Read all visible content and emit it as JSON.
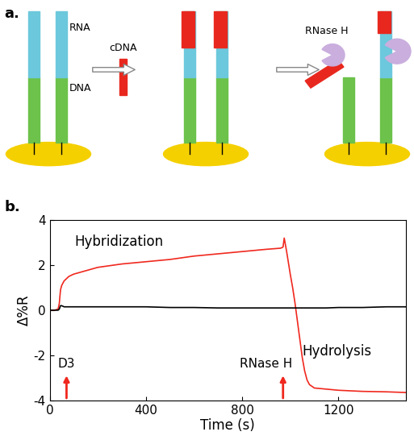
{
  "panel_a": {
    "label": "a.",
    "rna_label": "RNA",
    "dna_label": "DNA",
    "probe_label": "cDNA",
    "enzyme_label": "RNase H"
  },
  "chart_data": {
    "type": "line",
    "panel_label": "b.",
    "x_label": "Time (s)",
    "y_label": "Δ%R",
    "xlim": [
      0,
      1480
    ],
    "xticks": [
      0,
      400,
      800,
      1200
    ],
    "ylim": [
      -4,
      4
    ],
    "yticks": [
      -4,
      -2,
      0,
      2,
      4
    ],
    "x": [
      0,
      20,
      35,
      40,
      45,
      50,
      60,
      80,
      100,
      150,
      200,
      300,
      400,
      500,
      600,
      700,
      800,
      900,
      960,
      970,
      975,
      985,
      1000,
      1010,
      1020,
      1030,
      1040,
      1050,
      1060,
      1070,
      1080,
      1100,
      1150,
      1200,
      1300,
      1400,
      1480
    ],
    "series": [
      {
        "color": "#f0281e",
        "values": [
          0,
          0,
          0.05,
          0.3,
          0.9,
          1.1,
          1.3,
          1.5,
          1.6,
          1.75,
          1.9,
          2.05,
          2.15,
          2.25,
          2.4,
          2.5,
          2.6,
          2.7,
          2.75,
          2.8,
          3.2,
          2.6,
          1.6,
          1.0,
          0.3,
          -0.5,
          -1.3,
          -2.1,
          -2.7,
          -3.1,
          -3.3,
          -3.45,
          -3.5,
          -3.55,
          -3.6,
          -3.62,
          -3.65
        ]
      },
      {
        "color": "#000000",
        "values": [
          0,
          0,
          0,
          0.05,
          0.2,
          0.2,
          0.15,
          0.15,
          0.15,
          0.15,
          0.15,
          0.15,
          0.15,
          0.12,
          0.12,
          0.1,
          0.1,
          0.1,
          0.1,
          0.1,
          0.1,
          0.1,
          0.1,
          0.1,
          0.1,
          0.1,
          0.1,
          0.1,
          0.1,
          0.1,
          0.1,
          0.1,
          0.1,
          0.12,
          0.12,
          0.15,
          0.15
        ]
      }
    ],
    "annotations": [
      {
        "text": "Hybridization"
      },
      {
        "text": "Hydrolysis"
      }
    ],
    "events": [
      {
        "text": "D3",
        "x": 70,
        "color": "#f0281e"
      },
      {
        "text": "RNase H",
        "x": 970,
        "color": "#f0281e"
      }
    ]
  }
}
